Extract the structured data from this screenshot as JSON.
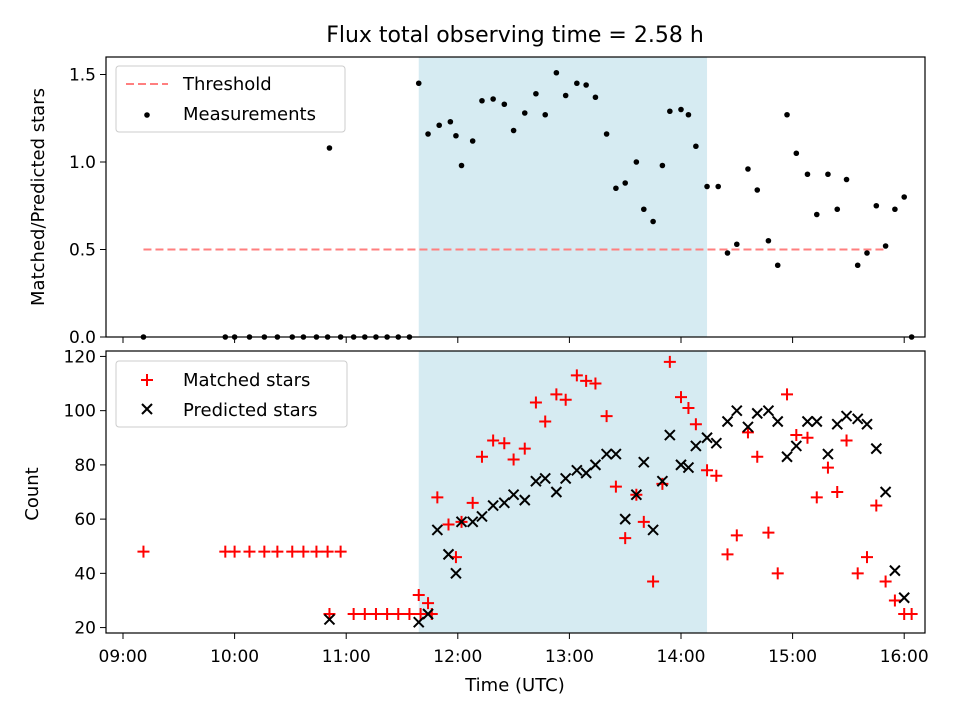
{
  "chart_data": [
    {
      "type": "scatter",
      "title": "Flux total observing time = 2.58 h",
      "xlabel": "",
      "ylabel": "Matched/Predicted stars",
      "ylim": [
        0,
        1.6
      ],
      "yticks": [
        "0.0",
        "0.5",
        "1.0",
        "1.5"
      ],
      "xlim": [
        "09:00",
        "16:00"
      ],
      "grid": false,
      "legend_position": "top-left",
      "highlight_span": {
        "from": "11:39",
        "to": "14:14",
        "color": "#add8e6"
      },
      "series": [
        {
          "name": "Threshold",
          "kind": "dashed-line",
          "color": "#ff7f7f",
          "points": [
            [
              "09:11",
              0.5
            ],
            [
              "15:51",
              0.5
            ]
          ]
        },
        {
          "name": "Measurements",
          "kind": "dots",
          "color": "#000000",
          "points": [
            [
              "09:11",
              0.0
            ],
            [
              "09:55",
              0.0
            ],
            [
              "10:00",
              0.0
            ],
            [
              "10:08",
              0.0
            ],
            [
              "10:16",
              0.0
            ],
            [
              "10:23",
              0.0
            ],
            [
              "10:31",
              0.0
            ],
            [
              "10:37",
              0.0
            ],
            [
              "10:44",
              0.0
            ],
            [
              "10:50",
              0.0
            ],
            [
              "10:51",
              1.08
            ],
            [
              "10:57",
              0.0
            ],
            [
              "11:04",
              0.0
            ],
            [
              "11:10",
              0.0
            ],
            [
              "11:16",
              0.0
            ],
            [
              "11:22",
              0.0
            ],
            [
              "11:28",
              0.0
            ],
            [
              "11:34",
              0.0
            ],
            [
              "11:39",
              1.45
            ],
            [
              "11:44",
              1.16
            ],
            [
              "11:50",
              1.21
            ],
            [
              "11:56",
              1.23
            ],
            [
              "11:59",
              1.15
            ],
            [
              "12:02",
              0.98
            ],
            [
              "12:08",
              1.12
            ],
            [
              "12:13",
              1.35
            ],
            [
              "12:19",
              1.36
            ],
            [
              "12:25",
              1.33
            ],
            [
              "12:30",
              1.18
            ],
            [
              "12:36",
              1.28
            ],
            [
              "12:42",
              1.39
            ],
            [
              "12:47",
              1.27
            ],
            [
              "12:53",
              1.51
            ],
            [
              "12:58",
              1.38
            ],
            [
              "13:04",
              1.45
            ],
            [
              "13:09",
              1.44
            ],
            [
              "13:14",
              1.37
            ],
            [
              "13:20",
              1.16
            ],
            [
              "13:25",
              0.85
            ],
            [
              "13:30",
              0.88
            ],
            [
              "13:36",
              1.0
            ],
            [
              "13:40",
              0.73
            ],
            [
              "13:45",
              0.66
            ],
            [
              "13:50",
              0.98
            ],
            [
              "13:54",
              1.29
            ],
            [
              "14:00",
              1.3
            ],
            [
              "14:04",
              1.27
            ],
            [
              "14:08",
              1.09
            ],
            [
              "14:14",
              0.86
            ],
            [
              "14:20",
              0.86
            ],
            [
              "14:25",
              0.48
            ],
            [
              "14:30",
              0.53
            ],
            [
              "14:36",
              0.96
            ],
            [
              "14:41",
              0.84
            ],
            [
              "14:47",
              0.55
            ],
            [
              "14:52",
              0.41
            ],
            [
              "14:57",
              1.27
            ],
            [
              "15:02",
              1.05
            ],
            [
              "15:08",
              0.93
            ],
            [
              "15:13",
              0.7
            ],
            [
              "15:19",
              0.93
            ],
            [
              "15:24",
              0.73
            ],
            [
              "15:29",
              0.9
            ],
            [
              "15:35",
              0.41
            ],
            [
              "15:40",
              0.48
            ],
            [
              "15:45",
              0.75
            ],
            [
              "15:50",
              0.52
            ],
            [
              "15:55",
              0.73
            ],
            [
              "16:00",
              0.8
            ],
            [
              "16:04",
              0.0
            ]
          ]
        }
      ]
    },
    {
      "type": "scatter",
      "title": "",
      "xlabel": "Time (UTC)",
      "ylabel": "Count",
      "ylim": [
        18,
        122
      ],
      "yticks": [
        "20",
        "40",
        "60",
        "80",
        "100",
        "120"
      ],
      "xlim": [
        "09:00",
        "16:00"
      ],
      "xticks": [
        "09:00",
        "10:00",
        "11:00",
        "12:00",
        "13:00",
        "14:00",
        "15:00",
        "16:00"
      ],
      "grid": false,
      "legend_position": "top-left",
      "highlight_span": {
        "from": "11:39",
        "to": "14:14",
        "color": "#add8e6"
      },
      "series": [
        {
          "name": "Matched stars",
          "kind": "plus",
          "color": "#ff0000",
          "points": [
            [
              "09:11",
              48
            ],
            [
              "09:55",
              48
            ],
            [
              "10:00",
              48
            ],
            [
              "10:08",
              48
            ],
            [
              "10:16",
              48
            ],
            [
              "10:23",
              48
            ],
            [
              "10:31",
              48
            ],
            [
              "10:37",
              48
            ],
            [
              "10:44",
              48
            ],
            [
              "10:50",
              48
            ],
            [
              "10:57",
              48
            ],
            [
              "10:51",
              25
            ],
            [
              "11:04",
              25
            ],
            [
              "11:10",
              25
            ],
            [
              "11:16",
              25
            ],
            [
              "11:22",
              25
            ],
            [
              "11:28",
              25
            ],
            [
              "11:34",
              25
            ],
            [
              "11:40",
              25
            ],
            [
              "11:46",
              25
            ],
            [
              "11:39",
              32
            ],
            [
              "11:44",
              29
            ],
            [
              "11:49",
              68
            ],
            [
              "11:55",
              58
            ],
            [
              "11:59",
              46
            ],
            [
              "12:02",
              59
            ],
            [
              "12:08",
              66
            ],
            [
              "12:13",
              83
            ],
            [
              "12:19",
              89
            ],
            [
              "12:25",
              88
            ],
            [
              "12:30",
              82
            ],
            [
              "12:36",
              86
            ],
            [
              "12:42",
              103
            ],
            [
              "12:47",
              96
            ],
            [
              "12:53",
              106
            ],
            [
              "12:58",
              104
            ],
            [
              "13:04",
              113
            ],
            [
              "13:09",
              111
            ],
            [
              "13:14",
              110
            ],
            [
              "13:20",
              98
            ],
            [
              "13:25",
              72
            ],
            [
              "13:30",
              53
            ],
            [
              "13:36",
              69
            ],
            [
              "13:40",
              59
            ],
            [
              "13:45",
              37
            ],
            [
              "13:50",
              73
            ],
            [
              "13:54",
              118
            ],
            [
              "14:00",
              105
            ],
            [
              "14:04",
              101
            ],
            [
              "14:08",
              95
            ],
            [
              "14:14",
              78
            ],
            [
              "14:19",
              76
            ],
            [
              "14:25",
              47
            ],
            [
              "14:30",
              54
            ],
            [
              "14:36",
              92
            ],
            [
              "14:41",
              83
            ],
            [
              "14:47",
              55
            ],
            [
              "14:52",
              40
            ],
            [
              "14:57",
              106
            ],
            [
              "15:02",
              91
            ],
            [
              "15:08",
              90
            ],
            [
              "15:13",
              68
            ],
            [
              "15:19",
              79
            ],
            [
              "15:24",
              70
            ],
            [
              "15:29",
              89
            ],
            [
              "15:35",
              40
            ],
            [
              "15:40",
              46
            ],
            [
              "15:45",
              65
            ],
            [
              "15:50",
              37
            ],
            [
              "15:55",
              30
            ],
            [
              "16:00",
              25
            ],
            [
              "16:04",
              25
            ]
          ]
        },
        {
          "name": "Predicted stars",
          "kind": "x",
          "color": "#000000",
          "points": [
            [
              "10:51",
              23
            ],
            [
              "11:39",
              22
            ],
            [
              "11:44",
              25
            ],
            [
              "11:49",
              56
            ],
            [
              "11:55",
              47
            ],
            [
              "11:59",
              40
            ],
            [
              "12:02",
              59
            ],
            [
              "12:08",
              59
            ],
            [
              "12:13",
              61
            ],
            [
              "12:19",
              65
            ],
            [
              "12:25",
              66
            ],
            [
              "12:30",
              69
            ],
            [
              "12:36",
              67
            ],
            [
              "12:42",
              74
            ],
            [
              "12:47",
              75
            ],
            [
              "12:53",
              70
            ],
            [
              "12:58",
              75
            ],
            [
              "13:04",
              78
            ],
            [
              "13:09",
              77
            ],
            [
              "13:14",
              80
            ],
            [
              "13:20",
              84
            ],
            [
              "13:25",
              84
            ],
            [
              "13:30",
              60
            ],
            [
              "13:36",
              69
            ],
            [
              "13:40",
              81
            ],
            [
              "13:45",
              56
            ],
            [
              "13:50",
              74
            ],
            [
              "13:54",
              91
            ],
            [
              "14:00",
              80
            ],
            [
              "14:04",
              79
            ],
            [
              "14:08",
              87
            ],
            [
              "14:14",
              90
            ],
            [
              "14:19",
              88
            ],
            [
              "14:25",
              96
            ],
            [
              "14:30",
              100
            ],
            [
              "14:36",
              94
            ],
            [
              "14:41",
              99
            ],
            [
              "14:47",
              100
            ],
            [
              "14:52",
              96
            ],
            [
              "14:57",
              83
            ],
            [
              "15:02",
              87
            ],
            [
              "15:08",
              96
            ],
            [
              "15:13",
              96
            ],
            [
              "15:19",
              84
            ],
            [
              "15:24",
              95
            ],
            [
              "15:29",
              98
            ],
            [
              "15:35",
              97
            ],
            [
              "15:40",
              95
            ],
            [
              "15:45",
              86
            ],
            [
              "15:50",
              70
            ],
            [
              "15:55",
              41
            ],
            [
              "16:00",
              31
            ]
          ]
        }
      ]
    }
  ]
}
